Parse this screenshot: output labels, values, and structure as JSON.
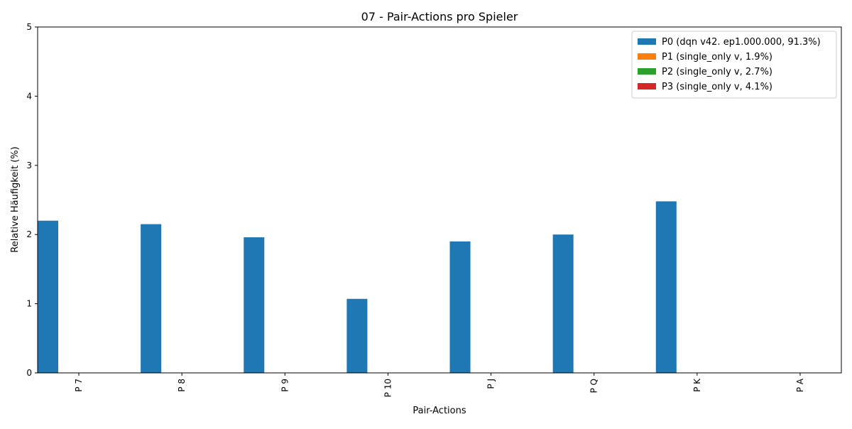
{
  "chart_data": {
    "type": "bar",
    "title": "07 - Pair-Actions pro Spieler",
    "xlabel": "Pair-Actions",
    "ylabel": "Relative Häufigkeit (%)",
    "ylim": [
      0,
      5
    ],
    "yticks": [
      0,
      1,
      2,
      3,
      4,
      5
    ],
    "categories": [
      "P 7",
      "P 8",
      "P 9",
      "P 10",
      "P J",
      "P Q",
      "P K",
      "P A"
    ],
    "series": [
      {
        "name": "P0 (dqn v42. ep1.000.000, 91.3%)",
        "color": "#1f77b4",
        "values": [
          2.2,
          2.15,
          1.96,
          1.07,
          1.9,
          2.0,
          2.48,
          0
        ]
      },
      {
        "name": "P1 (single_only v, 1.9%)",
        "color": "#ff7f0e",
        "values": [
          0,
          0,
          0,
          0,
          0,
          0,
          0,
          0
        ]
      },
      {
        "name": "P2 (single_only v, 2.7%)",
        "color": "#2ca02c",
        "values": [
          0,
          0,
          0,
          0,
          0,
          0,
          0,
          0
        ]
      },
      {
        "name": "P3 (single_only v, 4.1%)",
        "color": "#d62728",
        "values": [
          0,
          0,
          0,
          0,
          0,
          0,
          0,
          0
        ]
      }
    ],
    "legend_position": "top-right",
    "grid": false
  }
}
